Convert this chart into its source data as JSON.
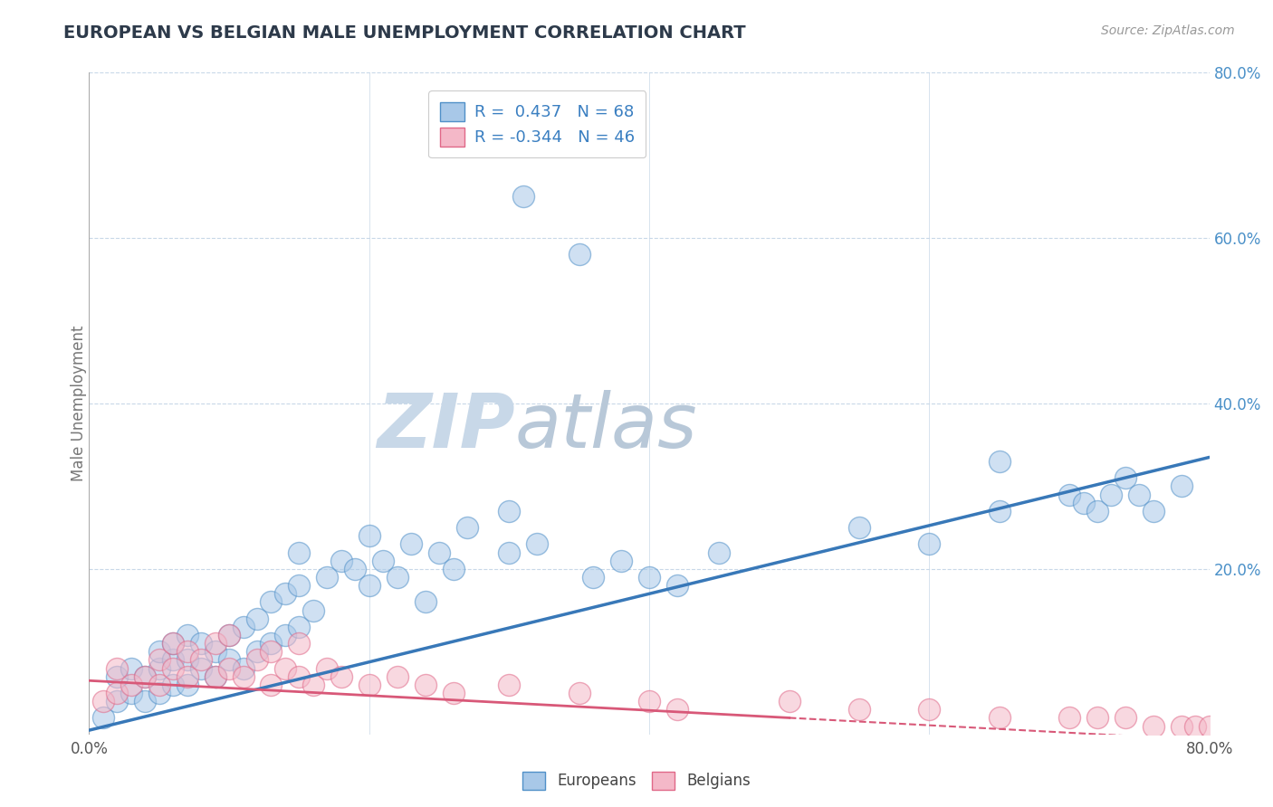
{
  "title": "EUROPEAN VS BELGIAN MALE UNEMPLOYMENT CORRELATION CHART",
  "source": "Source: ZipAtlas.com",
  "ylabel": "Male Unemployment",
  "xlim": [
    0.0,
    0.8
  ],
  "ylim": [
    0.0,
    0.8
  ],
  "blue_R": 0.437,
  "blue_N": 68,
  "pink_R": -0.344,
  "pink_N": 46,
  "blue_color": "#a8c8e8",
  "pink_color": "#f4b8c8",
  "blue_edge_color": "#5090c8",
  "pink_edge_color": "#e06888",
  "blue_line_color": "#3878b8",
  "pink_line_color": "#d85878",
  "watermark_zip_color": "#c8d8e8",
  "watermark_atlas_color": "#c0ccd8",
  "title_color": "#2d3a4a",
  "legend_text_color": "#3a7fc1",
  "grid_color": "#c8d8e8",
  "background_color": "#ffffff",
  "blue_line_start_x": 0.0,
  "blue_line_start_y": 0.005,
  "blue_line_end_x": 0.8,
  "blue_line_end_y": 0.335,
  "pink_line_start_x": 0.0,
  "pink_line_start_y": 0.065,
  "pink_line_end_x": 0.5,
  "pink_line_end_y": 0.02,
  "pink_line_dash_end_x": 0.8,
  "blue_scatter_x": [
    0.01,
    0.02,
    0.02,
    0.03,
    0.03,
    0.04,
    0.04,
    0.05,
    0.05,
    0.05,
    0.06,
    0.06,
    0.06,
    0.07,
    0.07,
    0.07,
    0.08,
    0.08,
    0.09,
    0.09,
    0.1,
    0.1,
    0.11,
    0.11,
    0.12,
    0.12,
    0.13,
    0.13,
    0.14,
    0.14,
    0.15,
    0.15,
    0.15,
    0.16,
    0.17,
    0.18,
    0.19,
    0.2,
    0.2,
    0.21,
    0.22,
    0.23,
    0.24,
    0.25,
    0.26,
    0.27,
    0.3,
    0.3,
    0.31,
    0.32,
    0.35,
    0.36,
    0.38,
    0.4,
    0.42,
    0.45,
    0.55,
    0.6,
    0.65,
    0.65,
    0.7,
    0.71,
    0.72,
    0.73,
    0.74,
    0.75,
    0.76,
    0.78
  ],
  "blue_scatter_y": [
    0.02,
    0.04,
    0.07,
    0.05,
    0.08,
    0.04,
    0.07,
    0.05,
    0.08,
    0.1,
    0.06,
    0.09,
    0.11,
    0.06,
    0.09,
    0.12,
    0.08,
    0.11,
    0.07,
    0.1,
    0.09,
    0.12,
    0.08,
    0.13,
    0.1,
    0.14,
    0.11,
    0.16,
    0.12,
    0.17,
    0.13,
    0.18,
    0.22,
    0.15,
    0.19,
    0.21,
    0.2,
    0.18,
    0.24,
    0.21,
    0.19,
    0.23,
    0.16,
    0.22,
    0.2,
    0.25,
    0.22,
    0.27,
    0.65,
    0.23,
    0.58,
    0.19,
    0.21,
    0.19,
    0.18,
    0.22,
    0.25,
    0.23,
    0.27,
    0.33,
    0.29,
    0.28,
    0.27,
    0.29,
    0.31,
    0.29,
    0.27,
    0.3
  ],
  "pink_scatter_x": [
    0.01,
    0.02,
    0.02,
    0.03,
    0.04,
    0.05,
    0.05,
    0.06,
    0.06,
    0.07,
    0.07,
    0.08,
    0.09,
    0.09,
    0.1,
    0.1,
    0.11,
    0.12,
    0.13,
    0.13,
    0.14,
    0.15,
    0.15,
    0.16,
    0.17,
    0.18,
    0.2,
    0.22,
    0.24,
    0.26,
    0.3,
    0.35,
    0.4,
    0.42,
    0.5,
    0.55,
    0.6,
    0.65,
    0.7,
    0.72,
    0.74,
    0.76,
    0.78,
    0.79,
    0.8,
    0.81
  ],
  "pink_scatter_y": [
    0.04,
    0.05,
    0.08,
    0.06,
    0.07,
    0.09,
    0.06,
    0.08,
    0.11,
    0.07,
    0.1,
    0.09,
    0.07,
    0.11,
    0.08,
    0.12,
    0.07,
    0.09,
    0.06,
    0.1,
    0.08,
    0.07,
    0.11,
    0.06,
    0.08,
    0.07,
    0.06,
    0.07,
    0.06,
    0.05,
    0.06,
    0.05,
    0.04,
    0.03,
    0.04,
    0.03,
    0.03,
    0.02,
    0.02,
    0.02,
    0.02,
    0.01,
    0.01,
    0.01,
    0.01,
    0.01
  ]
}
